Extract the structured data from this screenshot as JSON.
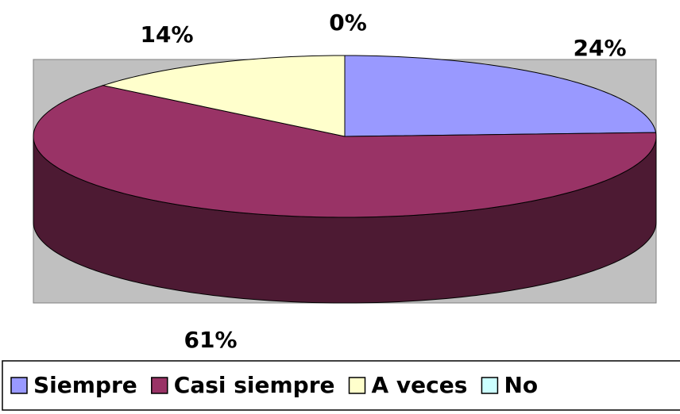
{
  "chart_data": {
    "type": "pie",
    "categories": [
      "Siempre",
      "Casi siempre",
      "A veces",
      "No"
    ],
    "values": [
      24,
      61,
      14,
      0
    ],
    "value_labels": [
      "24%",
      "61%",
      "14%",
      "0%"
    ],
    "colors": [
      "#9999ff",
      "#993366",
      "#ffffcc",
      "#ccffff"
    ],
    "legend": "bottom"
  }
}
